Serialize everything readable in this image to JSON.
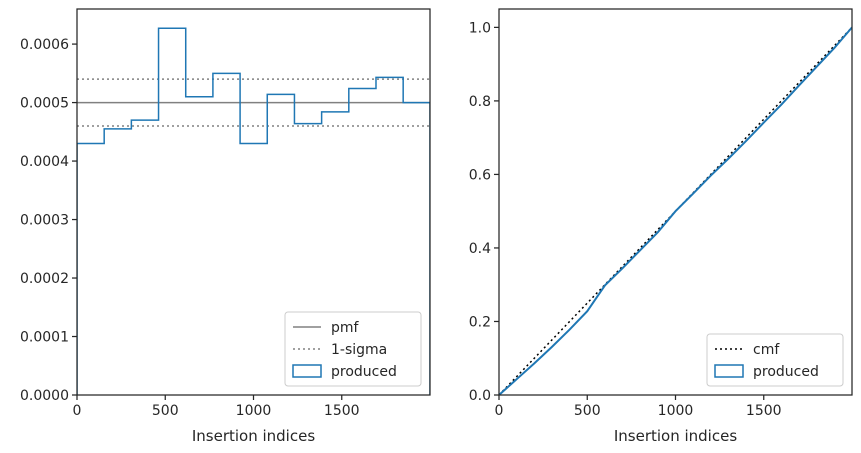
{
  "chart_data": [
    {
      "type": "line",
      "panel": "left",
      "xlabel": "Insertion indices",
      "ylabel": "",
      "xlim": [
        0,
        2000
      ],
      "ylim": [
        0,
        0.00066
      ],
      "xticks": [
        0,
        500,
        1000,
        1500
      ],
      "xtick_labels": [
        "0",
        "500",
        "1000",
        "1500"
      ],
      "yticks": [
        0,
        0.0001,
        0.0002,
        0.0003,
        0.0004,
        0.0005,
        0.0006
      ],
      "ytick_labels": [
        "0.0000",
        "0.0001",
        "0.0002",
        "0.0003",
        "0.0004",
        "0.0005",
        "0.0006"
      ],
      "grid": false,
      "legend_position": "lower right",
      "legend": [
        "pmf",
        "1-sigma",
        "produced"
      ],
      "series": [
        {
          "name": "pmf",
          "style": "solid",
          "color": "#808080",
          "y": 0.0005
        },
        {
          "name": "1-sigma",
          "style": "dotted",
          "color": "#808080",
          "y_values": [
            0.00046,
            0.00054
          ]
        },
        {
          "name": "produced",
          "style": "step-histogram",
          "color": "#1f77b4",
          "bin_edges": [
            0,
            154,
            308,
            462,
            616,
            770,
            924,
            1078,
            1232,
            1386,
            1540,
            1694,
            1848,
            2000
          ],
          "values": [
            0.00043,
            0.000455,
            0.00047,
            0.000627,
            0.00051,
            0.00055,
            0.00043,
            0.000514,
            0.000464,
            0.000484,
            0.000524,
            0.000543,
            0.0005
          ]
        }
      ]
    },
    {
      "type": "line",
      "panel": "right",
      "xlabel": "Insertion indices",
      "ylabel": "",
      "xlim": [
        0,
        2000
      ],
      "ylim": [
        0,
        1.05
      ],
      "xticks": [
        0,
        500,
        1000,
        1500
      ],
      "xtick_labels": [
        "0",
        "500",
        "1000",
        "1500"
      ],
      "yticks": [
        0,
        0.2,
        0.4,
        0.6,
        0.8,
        1.0
      ],
      "ytick_labels": [
        "0.0",
        "0.2",
        "0.4",
        "0.6",
        "0.8",
        "1.0"
      ],
      "grid": false,
      "legend_position": "lower right",
      "legend": [
        "cmf",
        "produced"
      ],
      "series": [
        {
          "name": "cmf",
          "style": "dotted",
          "color": "#000000",
          "x": [
            0,
            2000
          ],
          "y": [
            0,
            1.0
          ]
        },
        {
          "name": "produced",
          "style": "solid",
          "color": "#1f77b4",
          "x": [
            0,
            100,
            200,
            300,
            400,
            500,
            600,
            700,
            800,
            900,
            1000,
            1100,
            1200,
            1300,
            1400,
            1500,
            1600,
            1700,
            1800,
            1900,
            2000
          ],
          "y": [
            0,
            0.043,
            0.086,
            0.131,
            0.178,
            0.228,
            0.298,
            0.345,
            0.394,
            0.443,
            0.5,
            0.548,
            0.597,
            0.643,
            0.691,
            0.741,
            0.79,
            0.842,
            0.893,
            0.944,
            1.0
          ]
        }
      ]
    }
  ]
}
